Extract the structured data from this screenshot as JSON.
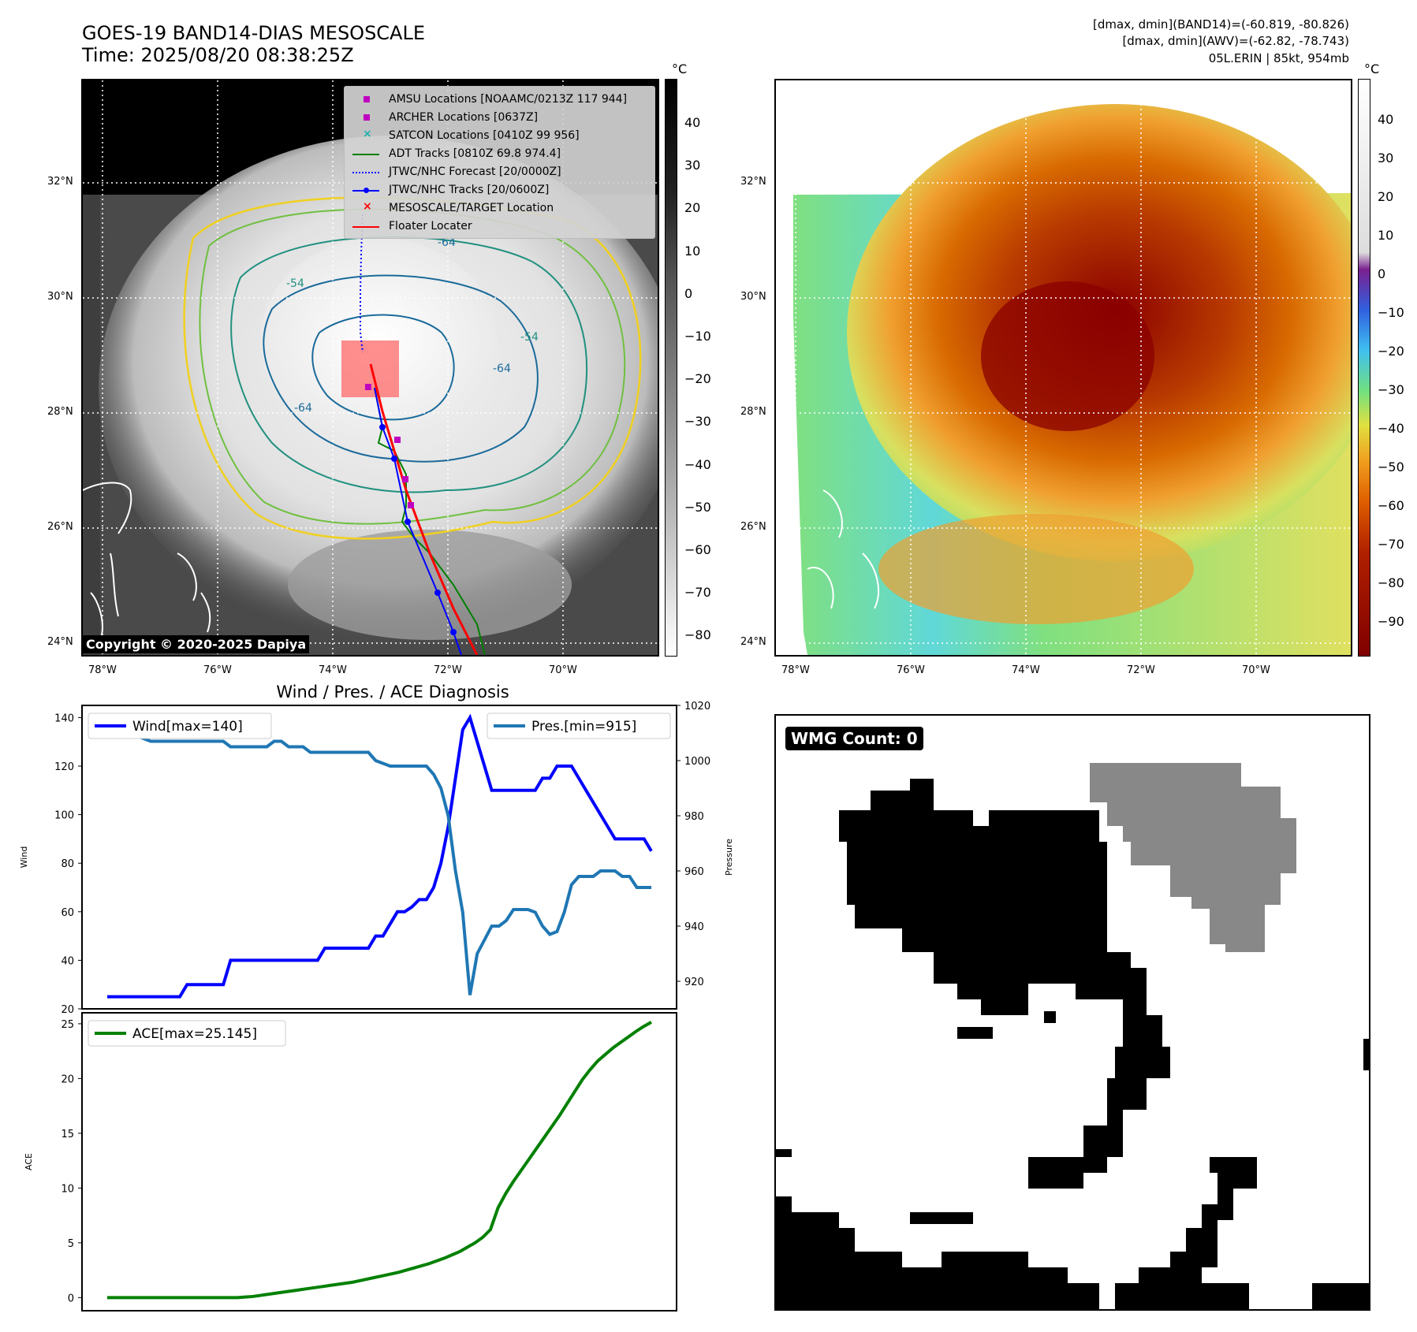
{
  "header": {
    "title_line1": "GOES-19 BAND14-DIAS MESOSCALE",
    "title_line2": "Time: 2025/08/20 08:38:25Z",
    "info_line1": "[dmax, dmin](BAND14)=(-60.819, -80.826)",
    "info_line2": "[dmax, dmin](AWV)=(-62.82, -78.743)",
    "info_line3": "05L.ERIN | 85kt, 954mb"
  },
  "map": {
    "lat_labels": [
      "32°N",
      "30°N",
      "28°N",
      "26°N",
      "24°N"
    ],
    "lon_labels": [
      "78°W",
      "76°W",
      "74°W",
      "72°W",
      "70°W"
    ],
    "copyright": "Copyright © 2020-2025 Dapiya",
    "contour_labels": [
      "-64",
      "-54",
      "-64",
      "-54",
      "-64"
    ],
    "legend": [
      {
        "label": "AMSU Locations [NOAAMC/0213Z 117 944]",
        "symbol": "square",
        "color": "#c000c0"
      },
      {
        "label": "ARCHER Locations [0637Z]",
        "symbol": "square",
        "color": "#c000c0"
      },
      {
        "label": "SATCON Locations [0410Z 99 956]",
        "symbol": "x",
        "color": "#20b0b0"
      },
      {
        "label": "ADT Tracks [0810Z 69.8 974.4]",
        "symbol": "line",
        "color": "#008000"
      },
      {
        "label": "JTWC/NHC Forecast [20/0000Z]",
        "symbol": "dotted",
        "color": "#0000ff"
      },
      {
        "label": "JTWC/NHC Tracks [20/0600Z]",
        "symbol": "line-dot",
        "color": "#0000ff"
      },
      {
        "label": "MESOSCALE/TARGET Location",
        "symbol": "x",
        "color": "#ff0000"
      },
      {
        "label": "Floater Locater",
        "symbol": "line",
        "color": "#ff0000"
      }
    ],
    "colorbar_unit": "°C",
    "colorbar_ticks": [
      "40",
      "30",
      "20",
      "10",
      "0",
      "−10",
      "−20",
      "−30",
      "−40",
      "−50",
      "−60",
      "−70",
      "−80"
    ]
  },
  "awv": {
    "lat_labels": [
      "32°N",
      "30°N",
      "28°N",
      "26°N",
      "24°N"
    ],
    "lon_labels": [
      "78°W",
      "76°W",
      "74°W",
      "72°W",
      "70°W"
    ],
    "colorbar_unit": "°C",
    "colorbar_ticks": [
      "40",
      "30",
      "20",
      "10",
      "0",
      "−10",
      "−20",
      "−30",
      "−40",
      "−50",
      "−60",
      "−70",
      "−80",
      "−90"
    ]
  },
  "chart_data": [
    {
      "type": "line",
      "title": "Wind / Pres. / ACE Diagnosis",
      "ylabel": "Wind",
      "ylabel_right": "Pressure",
      "ylim": [
        20,
        145
      ],
      "ylim_right": [
        910,
        1020
      ],
      "yticks": [
        "140",
        "120",
        "100",
        "80",
        "60",
        "40",
        "20"
      ],
      "yticks_right": [
        "1020",
        "1000",
        "980",
        "960",
        "940",
        "920"
      ],
      "series": [
        {
          "name": "Wind[max=140]",
          "color": "#0000ff",
          "values": [
            25,
            25,
            25,
            25,
            25,
            25,
            25,
            25,
            25,
            25,
            25,
            30,
            30,
            30,
            30,
            30,
            30,
            40,
            40,
            40,
            40,
            40,
            40,
            40,
            40,
            40,
            40,
            40,
            40,
            40,
            45,
            45,
            45,
            45,
            45,
            45,
            45,
            50,
            50,
            55,
            60,
            60,
            62,
            65,
            65,
            70,
            80,
            95,
            115,
            135,
            140,
            130,
            120,
            110,
            110,
            110,
            110,
            110,
            110,
            110,
            115,
            115,
            120,
            120,
            120,
            115,
            110,
            105,
            100,
            95,
            90,
            90,
            90,
            90,
            90,
            85
          ]
        },
        {
          "name": "Pres.[min=915]",
          "color": "#1f77b4",
          "values": [
            1015,
            1015,
            1015,
            1010,
            1009,
            1008,
            1007,
            1007,
            1007,
            1007,
            1007,
            1007,
            1007,
            1007,
            1007,
            1007,
            1007,
            1005,
            1005,
            1005,
            1005,
            1005,
            1005,
            1007,
            1007,
            1005,
            1005,
            1005,
            1003,
            1003,
            1003,
            1003,
            1003,
            1003,
            1003,
            1003,
            1003,
            1000,
            999,
            998,
            998,
            998,
            998,
            998,
            998,
            995,
            990,
            980,
            960,
            945,
            915,
            930,
            935,
            940,
            940,
            942,
            946,
            946,
            946,
            945,
            940,
            937,
            938,
            945,
            955,
            958,
            958,
            958,
            960,
            960,
            960,
            958,
            958,
            954,
            954,
            954
          ]
        }
      ],
      "legend_wind": "Wind[max=140]",
      "legend_pres": "Pres.[min=915]"
    },
    {
      "type": "line",
      "title": "",
      "ylabel": "ACE",
      "ylim": [
        -1.2,
        26
      ],
      "yticks": [
        "25",
        "20",
        "15",
        "10",
        "5",
        "0"
      ],
      "series": [
        {
          "name": "ACE[max=25.145]",
          "color": "#008000",
          "values": [
            0,
            0,
            0,
            0,
            0,
            0,
            0,
            0,
            0,
            0,
            0,
            0,
            0,
            0,
            0,
            0,
            0,
            0,
            0.05,
            0.1,
            0.2,
            0.3,
            0.4,
            0.5,
            0.6,
            0.7,
            0.8,
            0.9,
            1.0,
            1.1,
            1.2,
            1.3,
            1.4,
            1.55,
            1.7,
            1.85,
            2.0,
            2.15,
            2.3,
            2.5,
            2.7,
            2.9,
            3.1,
            3.35,
            3.6,
            3.9,
            4.2,
            4.6,
            5.0,
            5.5,
            6.2,
            8.2,
            9.5,
            10.6,
            11.6,
            12.6,
            13.6,
            14.6,
            15.6,
            16.6,
            17.7,
            18.8,
            19.9,
            20.8,
            21.6,
            22.2,
            22.8,
            23.3,
            23.8,
            24.3,
            24.75,
            25.145
          ]
        }
      ],
      "legend_ace": "ACE[max=25.145]"
    }
  ],
  "wmg": {
    "badge": "WMG Count: 0"
  }
}
